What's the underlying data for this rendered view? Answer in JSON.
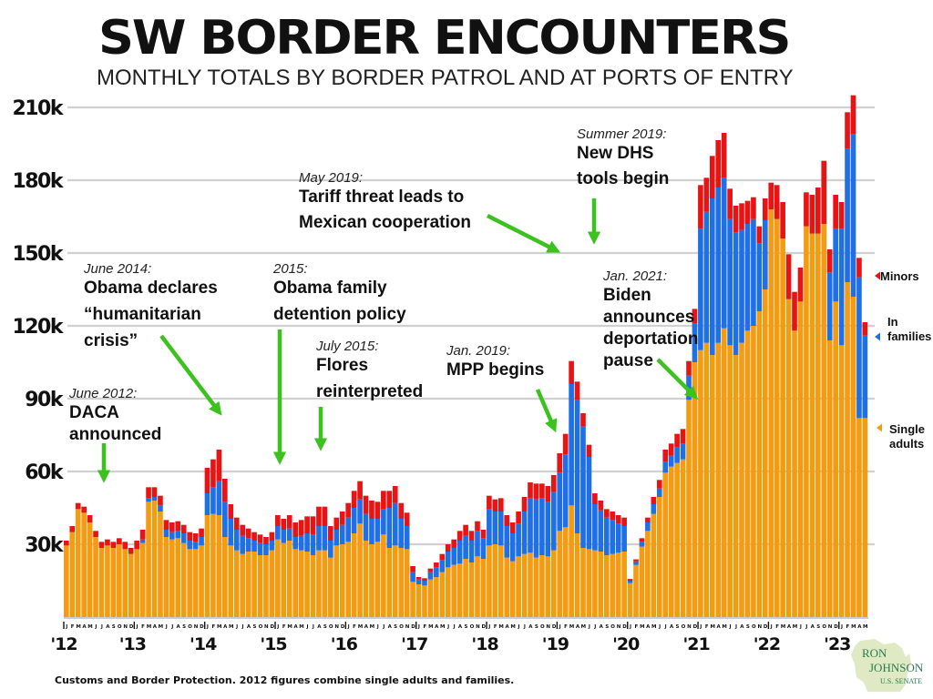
{
  "header": {
    "title": "SW BORDER ENCOUNTERS",
    "subtitle": "MONTHLY TOTALS BY BORDER PATROL AND AT PORTS OF ENTRY"
  },
  "footer": {
    "source": "Customs and Border Protection. 2012 figures combine single adults and families.",
    "logo_line1": "RON",
    "logo_line2": "JOHNSON",
    "logo_line3": "U.S. SENATE"
  },
  "colors": {
    "single_adults": "#f39c12",
    "in_families": "#1f6fe5",
    "minors": "#e81313",
    "annotation_arrow": "#3cc21e",
    "grid": "#d0d0d0"
  },
  "chart_data": {
    "type": "bar",
    "stacked": true,
    "title": "SW BORDER ENCOUNTERS",
    "subtitle": "MONTHLY TOTALS BY BORDER PATROL AND AT PORTS OF ENTRY",
    "xlabel": "",
    "ylabel": "",
    "ylim": [
      0,
      225000
    ],
    "yticks": [
      30000,
      60000,
      90000,
      120000,
      150000,
      180000,
      210000
    ],
    "ytick_labels": [
      "30k",
      "60k",
      "90k",
      "120k",
      "150k",
      "180k",
      "210k"
    ],
    "grid": true,
    "start": "2012-01",
    "end": "2023-05",
    "month_letters": [
      "J",
      "F",
      "M",
      "A",
      "M",
      "J",
      "J",
      "A",
      "S",
      "O",
      "N",
      "D"
    ],
    "year_labels": [
      "'12",
      "'13",
      "'14",
      "'15",
      "'16",
      "'17",
      "'18",
      "'19",
      "'20",
      "'21",
      "'22",
      "'23"
    ],
    "legend": [
      {
        "name": "Minors",
        "key": "minors"
      },
      {
        "name": "In families",
        "key": "in_families"
      },
      {
        "name": "Single adults",
        "key": "single_adults"
      }
    ],
    "legend_position": "right",
    "series": [
      {
        "name": "Single adults",
        "key": "single_adults",
        "values": [
          29500,
          35000,
          44500,
          43000,
          39000,
          33000,
          28500,
          29500,
          28500,
          30000,
          28000,
          26000,
          28000,
          30500,
          47500,
          48000,
          43500,
          33000,
          32000,
          32500,
          30500,
          28000,
          28000,
          29500,
          42000,
          42500,
          42000,
          33000,
          29500,
          27500,
          26000,
          27000,
          27000,
          25500,
          25500,
          27500,
          32000,
          30500,
          31500,
          28000,
          27500,
          27000,
          25500,
          27500,
          27500,
          24500,
          29500,
          30000,
          31000,
          34500,
          38500,
          31500,
          30000,
          31000,
          34000,
          28500,
          29500,
          28500,
          28000,
          14500,
          13500,
          13000,
          15500,
          16500,
          18500,
          20500,
          21500,
          22000,
          24000,
          22500,
          25000,
          24000,
          29500,
          30000,
          29500,
          24500,
          23000,
          25000,
          26000,
          26500,
          24500,
          25500,
          25000,
          27500,
          35500,
          37000,
          46000,
          34500,
          28500,
          28000,
          27500,
          27000,
          25500,
          26000,
          26500,
          27000,
          14000,
          21500,
          29000,
          35500,
          42500,
          49500,
          59500,
          62000,
          63500,
          65000,
          89500,
          105000,
          110000,
          113000,
          108000,
          113000,
          119000,
          112000,
          108000,
          113000,
          118000,
          120000,
          126000,
          135000,
          168000,
          164000,
          156000,
          131000,
          118000,
          130000,
          161000,
          158000,
          158000,
          162000,
          114000,
          130000,
          112000,
          138000,
          132000,
          82000,
          82000
        ]
      },
      {
        "name": "In families",
        "key": "in_families",
        "values": [
          0,
          0,
          0,
          0,
          0,
          0,
          0,
          0,
          0,
          0,
          0,
          0,
          0,
          1500,
          1500,
          1500,
          2500,
          3000,
          3000,
          3000,
          4000,
          3500,
          3000,
          3500,
          9000,
          11000,
          14000,
          14500,
          11000,
          8500,
          7500,
          5500,
          4500,
          5000,
          4500,
          4000,
          5500,
          5500,
          5000,
          5000,
          6000,
          7500,
          8500,
          10000,
          10000,
          7000,
          6500,
          8000,
          10000,
          10500,
          10000,
          11000,
          10500,
          9500,
          10500,
          16500,
          17500,
          12000,
          9500,
          4000,
          2000,
          2000,
          3000,
          4000,
          5000,
          6500,
          7000,
          9500,
          9500,
          9000,
          10500,
          8500,
          15000,
          13500,
          14000,
          13000,
          11500,
          13500,
          17500,
          22500,
          24000,
          23500,
          22500,
          24000,
          24000,
          30000,
          50000,
          55000,
          50000,
          38000,
          19000,
          17000,
          15500,
          14000,
          12000,
          10500,
          1000,
          1500,
          2000,
          3500,
          4000,
          3500,
          4500,
          4500,
          6500,
          6500,
          10000,
          16000,
          50000,
          54000,
          64500,
          64000,
          62000,
          52000,
          50500,
          46500,
          44000,
          44000,
          28000,
          28500,
          0,
          0,
          0,
          0,
          0,
          0,
          0,
          0,
          0,
          0,
          28000,
          30000,
          48000,
          55000,
          67000,
          58000,
          34000
        ]
      },
      {
        "name": "Minors",
        "key": "minors",
        "values": [
          2000,
          2500,
          2500,
          2500,
          3000,
          2500,
          2500,
          2500,
          2500,
          2500,
          3000,
          2500,
          3500,
          4000,
          4500,
          4000,
          4000,
          4000,
          4000,
          4000,
          3500,
          3500,
          3500,
          3500,
          10500,
          11500,
          13000,
          9500,
          6000,
          5000,
          4500,
          4000,
          3500,
          3500,
          3000,
          3500,
          4500,
          4500,
          5500,
          6000,
          6500,
          7000,
          7500,
          8000,
          8000,
          6000,
          5000,
          5500,
          6000,
          7000,
          7500,
          7500,
          7500,
          7000,
          7500,
          7000,
          7000,
          6500,
          5500,
          2500,
          1000,
          1000,
          1500,
          2000,
          2500,
          3000,
          3500,
          4000,
          4500,
          4000,
          4000,
          3500,
          5500,
          5000,
          5500,
          4500,
          4500,
          5000,
          6000,
          6500,
          6500,
          6000,
          6500,
          7000,
          8000,
          8500,
          9500,
          7500,
          5500,
          5000,
          4500,
          4000,
          3500,
          3500,
          3500,
          3500,
          700,
          800,
          1500,
          2000,
          3000,
          3500,
          5000,
          5000,
          5500,
          6000,
          6000,
          6000,
          18000,
          14000,
          17500,
          19500,
          18500,
          12500,
          11000,
          11000,
          9500,
          9000,
          7000,
          9000,
          11000,
          14000,
          15000,
          18500,
          16000,
          14000,
          14000,
          16000,
          19000,
          26000,
          9500,
          14000,
          11000,
          15000,
          16000,
          8000,
          5500
        ]
      }
    ],
    "annotations": [
      {
        "date": "June 2012:",
        "lines": [
          "DACA",
          "announced"
        ]
      },
      {
        "date": "June 2014:",
        "lines": [
          "Obama declares",
          "“humanitarian",
          "crisis”"
        ]
      },
      {
        "date": "2015:",
        "lines": [
          "Obama family",
          "detention policy"
        ]
      },
      {
        "date": "July 2015:",
        "lines": [
          "Flores",
          "reinterpreted"
        ]
      },
      {
        "date": "Jan. 2019:",
        "lines": [
          "MPP begins"
        ]
      },
      {
        "date": "May 2019:",
        "lines": [
          "Tariff threat leads to",
          "Mexican cooperation"
        ]
      },
      {
        "date": "Summer 2019:",
        "lines": [
          "New DHS",
          "tools begin"
        ]
      },
      {
        "date": "Jan. 2021:",
        "lines": [
          "Biden",
          "announces",
          "deportation",
          "pause"
        ]
      }
    ]
  }
}
